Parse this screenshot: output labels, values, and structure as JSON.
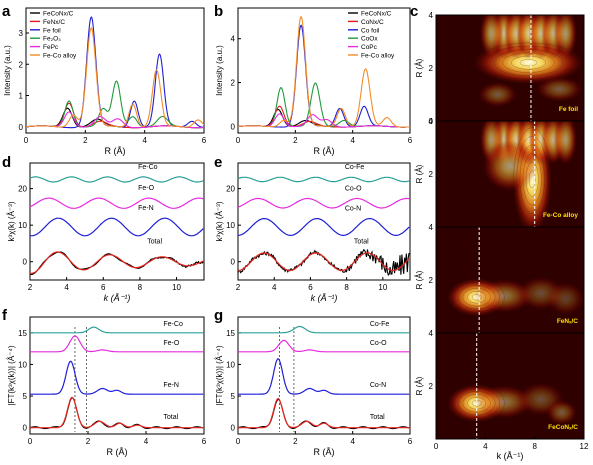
{
  "colors": {
    "black": "#000000",
    "red": "#e41a1c",
    "blue": "#1f1fd6",
    "green": "#229a3c",
    "magenta": "#e62ce0",
    "orange": "#f28c28",
    "teal": "#2aa198",
    "fit_red": "#e8261e",
    "wt_bg": "#2e0000"
  },
  "chart_data": [
    {
      "id": "a",
      "type": "line",
      "xlabel": "R (Å)",
      "ylabel": "Intensity (a.u.)",
      "xlim": [
        0,
        6
      ],
      "ylim": [
        -0.2,
        3.8
      ],
      "xticks": [
        "0",
        "2",
        "4",
        "6"
      ],
      "yticks": [
        "0",
        "1",
        "2",
        "3"
      ],
      "legend_position": "top-left",
      "series": [
        {
          "name": "FeCoNx/C",
          "color": "black",
          "peaks": [
            [
              1.4,
              0.62,
              0.22
            ],
            [
              2.4,
              0.22,
              0.3
            ]
          ]
        },
        {
          "name": "FeNx/C",
          "color": "red",
          "peaks": [
            [
              1.45,
              0.78,
              0.22
            ],
            [
              2.5,
              0.15,
              0.3
            ]
          ]
        },
        {
          "name": "Fe foil",
          "color": "blue",
          "peaks": [
            [
              2.2,
              3.5,
              0.22
            ],
            [
              3.65,
              0.85,
              0.18
            ],
            [
              4.5,
              2.3,
              0.2
            ],
            [
              5.6,
              0.2,
              0.2
            ]
          ]
        },
        {
          "name": "Fe₂O₃",
          "color": "green",
          "peaks": [
            [
              1.45,
              0.85,
              0.2
            ],
            [
              2.6,
              0.55,
              0.2
            ],
            [
              3.05,
              1.45,
              0.2
            ],
            [
              3.6,
              0.35,
              0.2
            ],
            [
              4.6,
              0.3,
              0.25
            ]
          ]
        },
        {
          "name": "FePc",
          "color": "magenta",
          "peaks": [
            [
              1.45,
              0.5,
              0.22
            ],
            [
              2.5,
              0.3,
              0.25
            ],
            [
              3.1,
              0.25,
              0.25
            ]
          ]
        },
        {
          "name": "Fe-Co alloy",
          "color": "orange",
          "peaks": [
            [
              1.6,
              0.4,
              0.2
            ],
            [
              2.2,
              3.15,
              0.22
            ],
            [
              3.6,
              0.75,
              0.18
            ],
            [
              4.4,
              1.8,
              0.2
            ],
            [
              5.8,
              0.25,
              0.2
            ]
          ]
        }
      ]
    },
    {
      "id": "b",
      "type": "line",
      "xlabel": "R (Å)",
      "ylabel": "Intensity (a.u.)",
      "xlim": [
        0,
        6
      ],
      "ylim": [
        -0.3,
        5.4
      ],
      "xticks": [
        "0",
        "2",
        "4",
        "6"
      ],
      "yticks": [
        "0",
        "2",
        "4"
      ],
      "legend_position": "top-right",
      "series": [
        {
          "name": "FeCoNx/C",
          "color": "black",
          "peaks": [
            [
              1.4,
              0.8,
              0.22
            ],
            [
              2.35,
              0.25,
              0.3
            ]
          ]
        },
        {
          "name": "CoNx/C",
          "color": "red",
          "peaks": [
            [
              1.45,
              0.95,
              0.22
            ],
            [
              2.5,
              0.2,
              0.3
            ]
          ]
        },
        {
          "name": "Co foil",
          "color": "blue",
          "peaks": [
            [
              2.2,
              4.6,
              0.22
            ],
            [
              3.55,
              0.85,
              0.2
            ],
            [
              4.4,
              0.9,
              0.2
            ]
          ]
        },
        {
          "name": "CoOx",
          "color": "green",
          "peaks": [
            [
              1.5,
              1.8,
              0.2
            ],
            [
              2.7,
              1.95,
              0.22
            ],
            [
              3.7,
              0.3,
              0.25
            ]
          ]
        },
        {
          "name": "CoPc",
          "color": "magenta",
          "peaks": [
            [
              1.45,
              0.6,
              0.22
            ],
            [
              2.6,
              0.5,
              0.25
            ],
            [
              3.1,
              0.3,
              0.25
            ]
          ]
        },
        {
          "name": "Fe-Co alloy",
          "color": "orange",
          "peaks": [
            [
              1.6,
              0.3,
              0.2
            ],
            [
              2.2,
              5.0,
              0.22
            ],
            [
              3.6,
              0.85,
              0.2
            ],
            [
              4.45,
              2.6,
              0.22
            ],
            [
              5.2,
              0.4,
              0.2
            ]
          ]
        }
      ]
    },
    {
      "id": "d",
      "type": "line",
      "xlabel": "k (Å⁻¹)",
      "ylabel": "k³χ(k) (Å⁻³)",
      "xlim": [
        2,
        11.5
      ],
      "ylim": [
        -5,
        27
      ],
      "xticks": [
        "2",
        "4",
        "6",
        "8",
        "10"
      ],
      "yticks": [
        "0",
        "10",
        "20"
      ],
      "labels": [
        "Fe-Co",
        "Fe-O",
        "Fe-N",
        "Total"
      ],
      "series": [
        {
          "name": "Fe-Co",
          "color": "teal",
          "offset": 22.5,
          "amp": 0.7,
          "freq": 1.6,
          "phase": 0.5,
          "decay": 0
        },
        {
          "name": "Fe-O",
          "color": "magenta",
          "offset": 16,
          "amp": 1.4,
          "freq": 1.15,
          "phase": 0.9,
          "decay": 0
        },
        {
          "name": "Fe-N",
          "color": "blue",
          "offset": 9.5,
          "amp": 2.4,
          "freq": 1.08,
          "phase": 0.2,
          "decay": 0
        },
        {
          "name": "Total",
          "color": "fit_red",
          "offset": 0,
          "amp": 3.2,
          "freq": 1.1,
          "phase": 0.1,
          "decay": 0.12,
          "with_data": true,
          "noise": 0.15
        }
      ]
    },
    {
      "id": "e",
      "type": "line",
      "xlabel": "k (Å⁻¹)",
      "ylabel": "k³χ(k) (Å⁻³)",
      "xlim": [
        2,
        11.5
      ],
      "ylim": [
        -5,
        27
      ],
      "xticks": [
        "2",
        "4",
        "6",
        "8",
        "10"
      ],
      "yticks": [
        "0",
        "10",
        "20"
      ],
      "labels": [
        "Co-Fe",
        "Co-O",
        "Co-N",
        "Total"
      ],
      "series": [
        {
          "name": "Co-Fe",
          "color": "teal",
          "offset": 22.5,
          "amp": 0.6,
          "freq": 1.6,
          "phase": 0.3,
          "decay": 0
        },
        {
          "name": "Co-O",
          "color": "magenta",
          "offset": 16,
          "amp": 1.3,
          "freq": 1.15,
          "phase": 0.7,
          "decay": 0
        },
        {
          "name": "Co-N",
          "color": "blue",
          "offset": 9.5,
          "amp": 2.3,
          "freq": 1.08,
          "phase": 0.4,
          "decay": 0
        },
        {
          "name": "Total",
          "color": "fit_red",
          "offset": 0,
          "amp": 2.4,
          "freq": 1.1,
          "phase": 0.3,
          "decay": 0.0,
          "with_data": true,
          "noise": 1.6
        }
      ]
    },
    {
      "id": "f",
      "type": "line",
      "xlabel": "R (Å)",
      "ylabel": "|FT(k³χ(k))| (Å⁻⁴)",
      "xlim": [
        0,
        6
      ],
      "ylim": [
        -1,
        17.5
      ],
      "xticks": [
        "0",
        "2",
        "4",
        "6"
      ],
      "yticks": [
        "0",
        "5",
        "10",
        "15"
      ],
      "labels": [
        "Fe-Co",
        "Fe-O",
        "Fe-N",
        "Total"
      ],
      "dashed_x": [
        1.55,
        1.95
      ],
      "series": [
        {
          "name": "Fe-Co",
          "color": "teal",
          "offset": 15,
          "peaks": [
            [
              2.2,
              0.9,
              0.25
            ]
          ]
        },
        {
          "name": "Fe-O",
          "color": "magenta",
          "offset": 12,
          "peaks": [
            [
              1.55,
              2.5,
              0.25
            ],
            [
              2.5,
              0.3,
              0.25
            ]
          ]
        },
        {
          "name": "Fe-N",
          "color": "blue",
          "offset": 5.3,
          "peaks": [
            [
              1.4,
              5.2,
              0.22
            ],
            [
              2.5,
              0.9,
              0.25
            ],
            [
              3.0,
              0.6,
              0.2
            ]
          ]
        },
        {
          "name": "Total",
          "color": "fit_red",
          "offset": 0,
          "peaks": [
            [
              1.45,
              4.8,
              0.22
            ],
            [
              2.4,
              1.0,
              0.25
            ],
            [
              3.1,
              0.7,
              0.2
            ],
            [
              3.7,
              0.4,
              0.2
            ]
          ],
          "with_data": true
        }
      ]
    },
    {
      "id": "g",
      "type": "line",
      "xlabel": "R (Å)",
      "ylabel": "|FT(k³χ(k))| (Å⁻⁴)",
      "xlim": [
        0,
        6
      ],
      "ylim": [
        -1,
        17.5
      ],
      "xticks": [
        "0",
        "2",
        "4",
        "6"
      ],
      "yticks": [
        "0",
        "5",
        "10",
        "15"
      ],
      "labels": [
        "Co-Fe",
        "Co-O",
        "Co-N",
        "Total"
      ],
      "dashed_x": [
        1.45,
        1.95
      ],
      "series": [
        {
          "name": "Co-Fe",
          "color": "teal",
          "offset": 15,
          "peaks": [
            [
              2.15,
              1.0,
              0.28
            ]
          ]
        },
        {
          "name": "Co-O",
          "color": "magenta",
          "offset": 12,
          "peaks": [
            [
              1.6,
              1.8,
              0.25
            ],
            [
              2.5,
              0.3,
              0.25
            ]
          ]
        },
        {
          "name": "Co-N",
          "color": "blue",
          "offset": 5.3,
          "peaks": [
            [
              1.4,
              5.6,
              0.22
            ],
            [
              2.5,
              0.9,
              0.25
            ],
            [
              3.0,
              0.6,
              0.2
            ]
          ]
        },
        {
          "name": "Total",
          "color": "fit_red",
          "offset": 0,
          "peaks": [
            [
              1.4,
              4.6,
              0.22
            ],
            [
              2.4,
              1.0,
              0.25
            ],
            [
              3.0,
              0.7,
              0.2
            ]
          ],
          "with_data": true
        }
      ]
    },
    {
      "id": "c",
      "type": "heatmap",
      "xlabel": "k (Å⁻¹)",
      "ylabel": "R (Å)",
      "xlim": [
        0,
        12
      ],
      "xticks": [
        "0",
        "4",
        "8",
        "12"
      ],
      "yticks": [
        "0",
        "2",
        "4"
      ],
      "panels": [
        {
          "name": "Fe foil",
          "dash_k": 7.7,
          "blobs": [
            [
              7.5,
              2.2,
              2.8,
              0.5,
              1.0
            ],
            [
              5.5,
              3.3,
              0.6,
              0.6,
              0.75
            ],
            [
              6.5,
              3.3,
              0.6,
              0.6,
              0.75
            ],
            [
              7.5,
              3.3,
              0.6,
              0.6,
              0.8
            ],
            [
              8.5,
              3.3,
              0.6,
              0.6,
              0.75
            ],
            [
              9.5,
              3.3,
              0.6,
              0.6,
              0.7
            ],
            [
              4.5,
              3.3,
              0.6,
              0.6,
              0.6
            ],
            [
              10.5,
              3.3,
              0.6,
              0.6,
              0.6
            ],
            [
              5.0,
              1.0,
              1.0,
              0.3,
              0.35
            ],
            [
              10.0,
              1.2,
              1.2,
              0.3,
              0.35
            ]
          ]
        },
        {
          "name": "Fe-Co alloy",
          "dash_k": 8.0,
          "blobs": [
            [
              7.8,
              1.8,
              1.0,
              1.3,
              1.0
            ],
            [
              5.5,
              3.3,
              0.6,
              0.6,
              0.75
            ],
            [
              6.5,
              3.3,
              0.6,
              0.6,
              0.8
            ],
            [
              7.5,
              3.3,
              0.6,
              0.6,
              0.85
            ],
            [
              8.5,
              3.3,
              0.6,
              0.6,
              0.8
            ],
            [
              9.5,
              3.3,
              0.6,
              0.6,
              0.7
            ],
            [
              4.5,
              3.3,
              0.6,
              0.6,
              0.6
            ],
            [
              10.5,
              3.3,
              0.6,
              0.6,
              0.6
            ],
            [
              6.0,
              2.3,
              1.4,
              0.6,
              0.6
            ]
          ]
        },
        {
          "name": "FeNₓ/C",
          "dash_k": 3.5,
          "blobs": [
            [
              3.3,
              1.35,
              1.5,
              0.45,
              1.0
            ],
            [
              5.5,
              1.4,
              1.5,
              0.4,
              0.45
            ],
            [
              8.5,
              1.5,
              1.2,
              0.4,
              0.3
            ],
            [
              10.5,
              1.3,
              1.0,
              0.4,
              0.25
            ]
          ]
        },
        {
          "name": "FeCoNₓ/C",
          "dash_k": 3.3,
          "blobs": [
            [
              3.3,
              1.35,
              1.5,
              0.45,
              1.0
            ],
            [
              5.5,
              1.4,
              1.5,
              0.4,
              0.45
            ],
            [
              8.5,
              1.5,
              1.2,
              0.4,
              0.3
            ],
            [
              10.2,
              1.0,
              0.8,
              0.3,
              0.35
            ]
          ]
        }
      ]
    }
  ],
  "panel_letters": {
    "a": "a",
    "b": "b",
    "c": "c",
    "d": "d",
    "e": "e",
    "f": "f",
    "g": "g"
  }
}
